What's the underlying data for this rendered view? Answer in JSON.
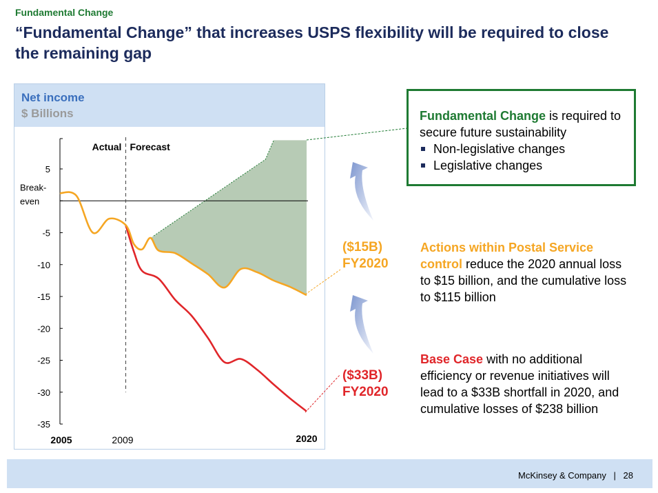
{
  "header": {
    "section_label": "Fundamental Change",
    "title": "“Fundamental Change” that increases USPS flexibility will be required to close the remaining gap"
  },
  "chart_data": {
    "type": "line",
    "title": "Net income",
    "ylabel": "$ Billions",
    "x_tick_labels": [
      "2005",
      "2009",
      "2020"
    ],
    "y_tick_labels": [
      "5",
      "Break-even",
      "-5",
      "-10",
      "-15",
      "-20",
      "-25",
      "-30",
      "-35"
    ],
    "y_ticks": [
      5,
      0,
      -5,
      -10,
      -15,
      -20,
      -25,
      -30,
      -35
    ],
    "ylim": [
      -35,
      10
    ],
    "xlim": [
      2005,
      2020
    ],
    "divider": {
      "x": 2009,
      "left_label": "Actual",
      "right_label": "Forecast"
    },
    "series": [
      {
        "name": "Actions within Postal Service control",
        "color": "#f5a623",
        "x": [
          2005,
          2006,
          2007,
          2008,
          2009,
          2009.5,
          2010,
          2010.5,
          2011,
          2012,
          2013,
          2014,
          2015,
          2016,
          2017,
          2018,
          2019,
          2020
        ],
        "y": [
          1.2,
          0.8,
          -5.0,
          -2.8,
          -3.8,
          -6.8,
          -7.6,
          -5.8,
          -7.8,
          -8.2,
          -9.8,
          -11.5,
          -13.6,
          -10.7,
          -11.2,
          -12.5,
          -13.5,
          -14.8
        ]
      },
      {
        "name": "Base Case",
        "color": "#e0262a",
        "x": [
          2009,
          2009.5,
          2010,
          2011,
          2012,
          2013,
          2014,
          2015,
          2016,
          2017,
          2018,
          2019,
          2020
        ],
        "y": [
          -3.8,
          -8.0,
          -11.0,
          -12.2,
          -15.5,
          -18.0,
          -21.5,
          -25.3,
          -24.8,
          -26.5,
          -28.8,
          -31.0,
          -33.0
        ]
      }
    ],
    "shaded_gap": {
      "label": "Fundamental Change",
      "color": "#b7cbb5",
      "upper_x": [
        2010.7,
        2017.5,
        2018,
        2020
      ],
      "upper_y": [
        -5.5,
        6.5,
        9.5,
        9.5
      ]
    },
    "annotations": [
      {
        "label": "($15B)",
        "sub": "FY2020",
        "color": "#f5a623",
        "value": -15
      },
      {
        "label": "($33B)",
        "sub": "FY2020",
        "color": "#e0262a",
        "value": -33
      }
    ]
  },
  "callout": {
    "lead": "Fundamental Change",
    "rest": " is required to secure future sustainability",
    "bullets": [
      "Non-legislative changes",
      "Legislative changes"
    ]
  },
  "actions": {
    "value_label": "($15B)",
    "year_label": "FY2020",
    "lead": "Actions within Postal Service control",
    "rest": " reduce the 2020 annual loss to $15 billion, and the cumulative loss to $115 billion"
  },
  "base_case": {
    "value_label": "($33B)",
    "year_label": "FY2020",
    "lead": "Base Case",
    "rest": " with no additional efficiency or revenue initiatives will lead to a $33B shortfall in 2020, and cumulative losses of $238 billion"
  },
  "footer": {
    "company": "McKinsey & Company",
    "page_number": "28"
  },
  "colors": {
    "title": "#1c2b5c",
    "green": "#1e7a32",
    "orange": "#f5a623",
    "red": "#e0262a",
    "panel_blue": "#cfe0f3",
    "gap_fill": "#b7cbb5"
  }
}
